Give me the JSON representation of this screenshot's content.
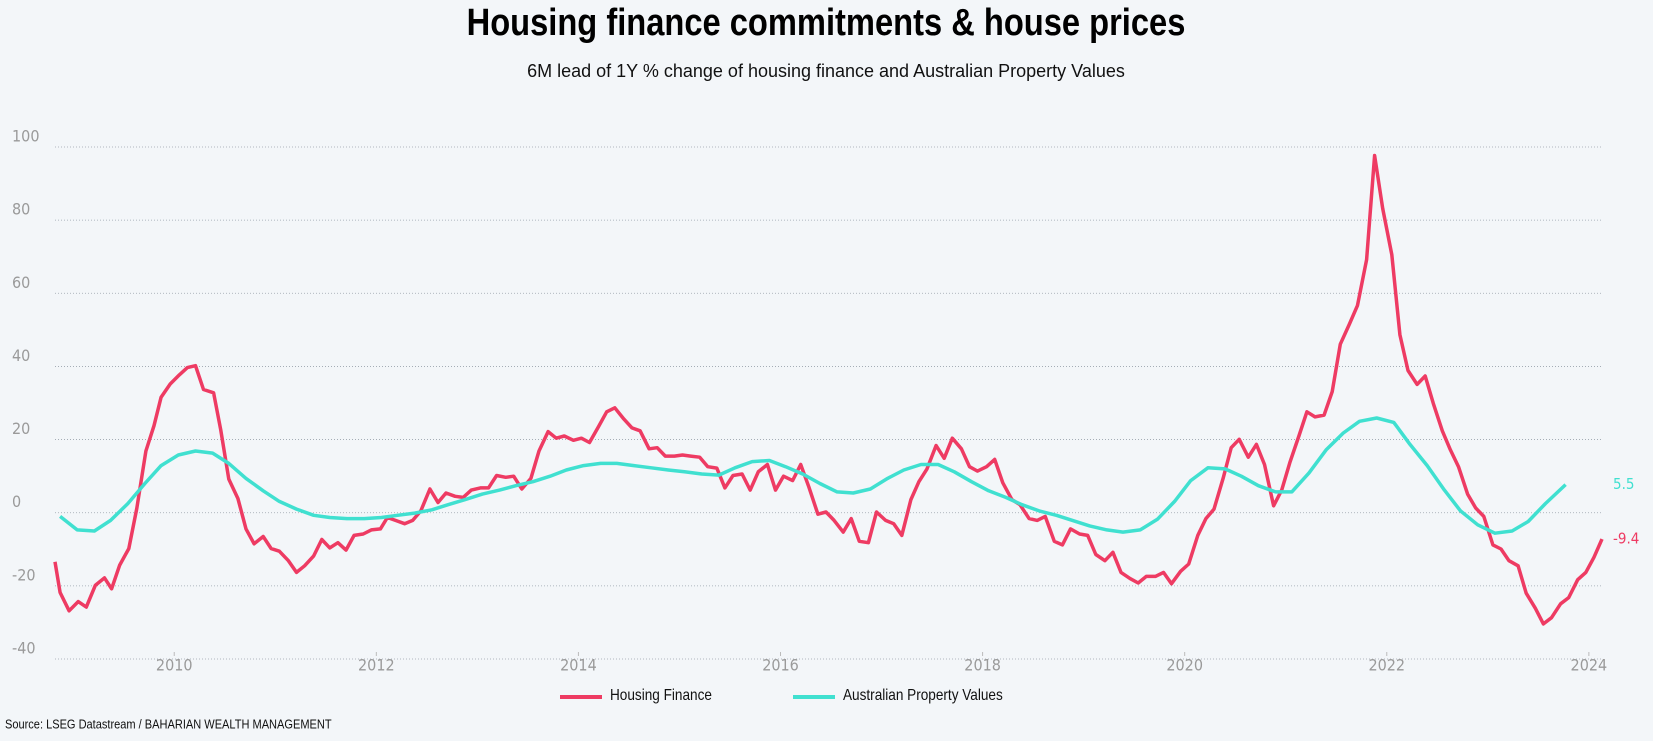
{
  "chart_data": {
    "type": "line",
    "title": "Housing finance commitments & house prices",
    "subtitle": "6M lead of 1Y % change of housing finance and Australian Property Values",
    "source": "Source: LSEG Datastream / BAHARIAN WEALTH MANAGEMENT",
    "xlim": [
      2008.82,
      2024.13
    ],
    "xticks": [
      2010,
      2012,
      2014,
      2016,
      2018,
      2020,
      2022,
      2024
    ],
    "ylim": [
      -40,
      100
    ],
    "yticks": [
      -40,
      -20,
      0,
      20,
      40,
      60,
      80,
      100
    ],
    "grid": true,
    "legend": "bottom",
    "series": [
      {
        "name": "Housing Finance",
        "color": "#ee3b63",
        "last_label": "-9.4",
        "x": [
          2008.82,
          2008.87,
          2008.96,
          2009.05,
          2009.13,
          2009.22,
          2009.31,
          2009.38,
          2009.46,
          2009.55,
          2009.63,
          2009.72,
          2009.8,
          2009.87,
          2009.96,
          2010.05,
          2010.13,
          2010.21,
          2010.29,
          2010.39,
          2010.46,
          2010.54,
          2010.63,
          2010.71,
          2010.79,
          2010.88,
          2010.96,
          2011.04,
          2011.13,
          2011.21,
          2011.29,
          2011.38,
          2011.46,
          2011.54,
          2011.62,
          2011.7,
          2011.78,
          2011.87,
          2011.95,
          2012.04,
          2012.11,
          2012.19,
          2012.28,
          2012.36,
          2012.44,
          2012.53,
          2012.61,
          2012.69,
          2012.78,
          2012.86,
          2012.94,
          2013.03,
          2013.11,
          2013.19,
          2013.28,
          2013.36,
          2013.44,
          2013.53,
          2013.61,
          2013.7,
          2013.78,
          2013.86,
          2013.95,
          2014.03,
          2014.11,
          2014.2,
          2014.28,
          2014.36,
          2014.45,
          2014.53,
          2014.61,
          2014.7,
          2014.78,
          2014.86,
          2014.95,
          2015.03,
          2015.11,
          2015.2,
          2015.28,
          2015.37,
          2015.45,
          2015.53,
          2015.62,
          2015.7,
          2015.78,
          2015.87,
          2015.95,
          2016.03,
          2016.12,
          2016.2,
          2016.28,
          2016.37,
          2016.45,
          2016.53,
          2016.62,
          2016.7,
          2016.78,
          2016.87,
          2016.95,
          2017.04,
          2017.12,
          2017.2,
          2017.29,
          2017.37,
          2017.45,
          2017.54,
          2017.62,
          2017.7,
          2017.79,
          2017.87,
          2017.95,
          2018.04,
          2018.12,
          2018.2,
          2018.29,
          2018.37,
          2018.46,
          2018.54,
          2018.62,
          2018.71,
          2018.79,
          2018.87,
          2018.96,
          2019.04,
          2019.12,
          2019.21,
          2019.29,
          2019.37,
          2019.46,
          2019.54,
          2019.62,
          2019.71,
          2019.79,
          2019.87,
          2019.96,
          2020.04,
          2020.13,
          2020.21,
          2020.29,
          2020.38,
          2020.46,
          2020.54,
          2020.63,
          2020.71,
          2020.79,
          2020.88,
          2020.96,
          2021.04,
          2021.13,
          2021.21,
          2021.29,
          2021.38,
          2021.46,
          2021.54,
          2021.63,
          2021.71,
          2021.8,
          2021.88,
          2021.96,
          2022.05,
          2022.13,
          2022.21,
          2022.3,
          2022.38,
          2022.46,
          2022.55,
          2022.63,
          2022.71,
          2022.8,
          2022.88,
          2022.96,
          2023.05,
          2023.13,
          2023.21,
          2023.3,
          2023.38,
          2023.47,
          2023.55,
          2023.63,
          2023.72,
          2023.8,
          2023.89,
          2023.97,
          2024.05,
          2024.13
        ],
        "values": [
          -15.6,
          -24,
          -29,
          -26.5,
          -28,
          -22,
          -20,
          -23,
          -16.5,
          -12,
          -1,
          14.7,
          21.6,
          29.4,
          33,
          35.5,
          37.5,
          38,
          31.5,
          30.6,
          20.5,
          7,
          1.7,
          -6.6,
          -10.7,
          -8.7,
          -12,
          -12.7,
          -15.3,
          -18.5,
          -16.7,
          -14,
          -9.5,
          -11.8,
          -10.4,
          -12.4,
          -8.4,
          -8,
          -6.9,
          -6.6,
          -3.5,
          -4.3,
          -5.2,
          -4.3,
          -1.7,
          4.3,
          0.6,
          3.2,
          2.3,
          2,
          4,
          4.6,
          4.6,
          8,
          7.5,
          7.8,
          4.3,
          7.2,
          14.7,
          20,
          18.2,
          18.8,
          17.6,
          18.2,
          17,
          21.4,
          25.4,
          26.5,
          23.4,
          21,
          20.2,
          15.3,
          15.6,
          13.3,
          13.3,
          13.6,
          13.3,
          13,
          10.4,
          10,
          4.6,
          8,
          8.4,
          4,
          9,
          11,
          4,
          7.8,
          6.6,
          11,
          4.9,
          -2.6,
          -2,
          -4.3,
          -7.5,
          -3.8,
          -10,
          -10.4,
          -2,
          -4.3,
          -5.2,
          -8.4,
          1.4,
          6.3,
          9.8,
          16.2,
          12.7,
          18.2,
          15.3,
          10.4,
          9.2,
          10.4,
          12.4,
          6,
          1.4,
          0,
          -3.8,
          -4.3,
          -3.2,
          -10,
          -11,
          -6.6,
          -8,
          -8.4,
          -13.6,
          -15.3,
          -13,
          -18.5,
          -20.2,
          -21.4,
          -19.6,
          -19.6,
          -18.5,
          -21.6,
          -18.2,
          -16.2,
          -8.4,
          -3.8,
          -1.2,
          7.2,
          15.6,
          17.9,
          13,
          16.5,
          11,
          -0.3,
          4,
          11.5,
          18.8,
          25.4,
          24,
          24.5,
          30.9,
          43.9,
          49.4,
          54.5,
          67,
          95.5,
          81,
          68.4,
          46.5,
          36.7,
          32.9,
          35.2,
          27.7,
          20.2,
          15,
          10.4,
          2.9,
          -0.9,
          -3.2,
          -11,
          -12.1,
          -15.3,
          -16.7,
          -24.2,
          -28.3,
          -32.6,
          -30.9,
          -27.1,
          -25.4,
          -20.5,
          -18.5,
          -14.4,
          -9.4
        ]
      },
      {
        "name": "Australian Property Values",
        "color": "#40e0d0",
        "last_label": "5.5",
        "x": [
          2008.87,
          2009.04,
          2009.21,
          2009.37,
          2009.54,
          2009.71,
          2009.87,
          2010.04,
          2010.21,
          2010.38,
          2010.54,
          2010.71,
          2010.88,
          2011.04,
          2011.21,
          2011.38,
          2011.54,
          2011.71,
          2011.88,
          2012.05,
          2012.21,
          2012.38,
          2012.55,
          2012.71,
          2012.88,
          2013.05,
          2013.22,
          2013.38,
          2013.55,
          2013.72,
          2013.88,
          2014.05,
          2014.22,
          2014.38,
          2014.55,
          2014.72,
          2014.89,
          2015.05,
          2015.22,
          2015.39,
          2015.55,
          2015.72,
          2015.89,
          2016.05,
          2016.22,
          2016.39,
          2016.56,
          2016.72,
          2016.89,
          2017.06,
          2017.22,
          2017.39,
          2017.56,
          2017.72,
          2017.89,
          2018.06,
          2018.23,
          2018.39,
          2018.56,
          2018.73,
          2018.89,
          2019.06,
          2019.23,
          2019.39,
          2019.56,
          2019.73,
          2019.9,
          2020.06,
          2020.23,
          2020.4,
          2020.56,
          2020.73,
          2020.9,
          2021.06,
          2021.23,
          2021.4,
          2021.57,
          2021.73,
          2021.9,
          2022.07,
          2022.23,
          2022.4,
          2022.57,
          2022.73,
          2022.9,
          2023.07,
          2023.24,
          2023.4,
          2023.57,
          2023.77
        ],
        "values": [
          -3.2,
          -6.9,
          -7.2,
          -4.3,
          0.3,
          5.8,
          10.7,
          13.6,
          14.7,
          14.1,
          11.3,
          7.2,
          3.8,
          0.9,
          -1.2,
          -2.9,
          -3.5,
          -3.8,
          -3.8,
          -3.5,
          -2.9,
          -2.3,
          -1.4,
          0,
          1.4,
          2.9,
          4,
          5.2,
          6.3,
          7.8,
          9.5,
          10.7,
          11.3,
          11.3,
          10.7,
          10.1,
          9.5,
          9,
          8.4,
          8.1,
          10.1,
          11.8,
          12.1,
          10.4,
          8.4,
          5.8,
          3.5,
          3.2,
          4.3,
          7.2,
          9.5,
          11,
          11,
          9,
          6.3,
          3.8,
          2,
          0,
          -1.7,
          -2.9,
          -4.3,
          -5.8,
          -6.9,
          -7.5,
          -6.9,
          -4,
          0.9,
          6.6,
          10.1,
          9.8,
          7.8,
          5.2,
          3.5,
          3.5,
          8.7,
          15,
          19.6,
          22.8,
          23.7,
          22.5,
          16.5,
          10.7,
          4,
          -1.7,
          -5.5,
          -7.8,
          -7.2,
          -4.6,
          0.3,
          5.5
        ]
      }
    ]
  }
}
